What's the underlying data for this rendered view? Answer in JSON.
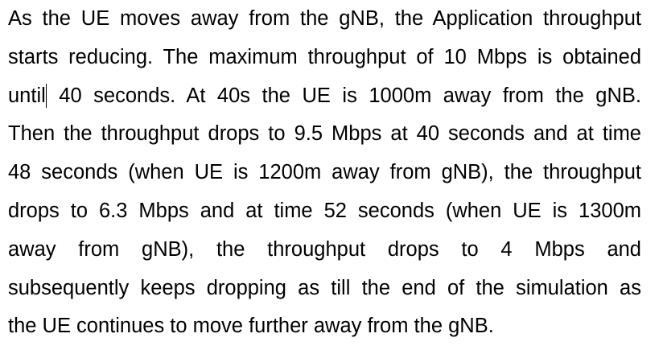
{
  "document": {
    "lines": [
      "As the UE moves away from the gNB, the Application throughput",
      "starts reducing. The maximum throughput of 10 Mbps is obtained",
      "until",
      "40 seconds. At 40s the UE is 1000m away from the gNB.",
      "Then the throughput drops to 9.5 Mbps at 40 seconds and at time",
      "48 seconds (when UE is 1200m away from gNB), the throughput",
      "drops to 6.3 Mbps and at time 52 seconds (when UE is 1300m",
      "away from gNB), the throughput drops to 4 Mbps and",
      "subsequently keeps dropping as till the end of the simulation as",
      "the UE continues to move further away from the gNB."
    ]
  }
}
